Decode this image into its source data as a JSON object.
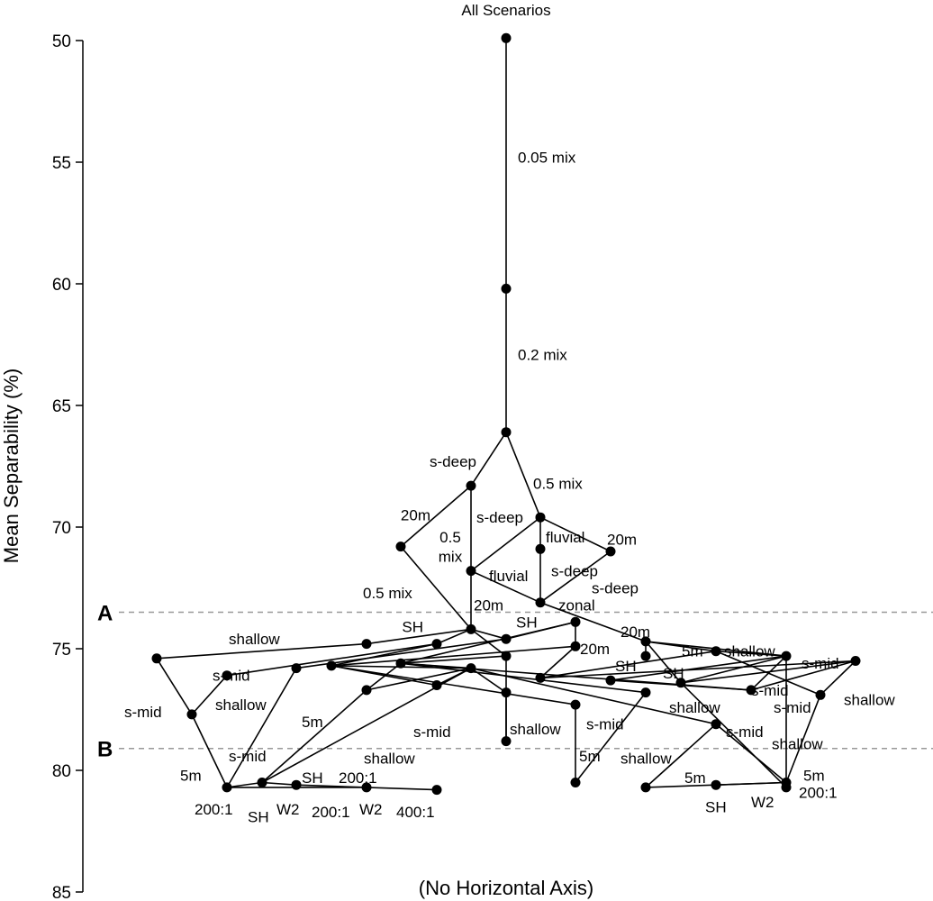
{
  "chart_data": {
    "type": "scatter",
    "title": "All Scenarios",
    "xlabel": "(No Horizontal Axis)",
    "ylabel": "Mean Separability (%)",
    "ylim": [
      50,
      85
    ],
    "y_inverted": true,
    "y_ticks": [
      "50",
      "55",
      "60",
      "65",
      "70",
      "75",
      "80",
      "85"
    ],
    "reference_lines": [
      {
        "label": "A",
        "y": 73.5,
        "style": "dashed",
        "color": "#999999"
      },
      {
        "label": "B",
        "y": 79.1,
        "style": "dashed",
        "color": "#999999"
      }
    ],
    "nodes": [
      {
        "id": "n0",
        "x": 562,
        "y": 49.9
      },
      {
        "id": "n1",
        "x": 562,
        "y": 60.2
      },
      {
        "id": "n2",
        "x": 562,
        "y": 66.1
      },
      {
        "id": "n3",
        "x": 523,
        "y": 68.3
      },
      {
        "id": "n4",
        "x": 600,
        "y": 69.6
      },
      {
        "id": "n5",
        "x": 445,
        "y": 70.8
      },
      {
        "id": "n6",
        "x": 600,
        "y": 70.9
      },
      {
        "id": "n7",
        "x": 678,
        "y": 71.0
      },
      {
        "id": "n8",
        "x": 523,
        "y": 71.8
      },
      {
        "id": "n9",
        "x": 600,
        "y": 73.1
      },
      {
        "id": "n10",
        "x": 523,
        "y": 74.2
      },
      {
        "id": "n11",
        "x": 639,
        "y": 73.9
      },
      {
        "id": "n12",
        "x": 562,
        "y": 74.6
      },
      {
        "id": "n13",
        "x": 407,
        "y": 74.8
      },
      {
        "id": "n14",
        "x": 485,
        "y": 74.8
      },
      {
        "id": "n15",
        "x": 717,
        "y": 74.7
      },
      {
        "id": "n16",
        "x": 639,
        "y": 74.9
      },
      {
        "id": "n17",
        "x": 795,
        "y": 75.1
      },
      {
        "id": "n18",
        "x": 873,
        "y": 75.3
      },
      {
        "id": "n19",
        "x": 174,
        "y": 75.4
      },
      {
        "id": "n20",
        "x": 562,
        "y": 75.3
      },
      {
        "id": "n21",
        "x": 717,
        "y": 75.3
      },
      {
        "id": "n22",
        "x": 950,
        "y": 75.5
      },
      {
        "id": "n23",
        "x": 368,
        "y": 75.7
      },
      {
        "id": "n24",
        "x": 445,
        "y": 75.6
      },
      {
        "id": "n25",
        "x": 329,
        "y": 75.8
      },
      {
        "id": "n26",
        "x": 523,
        "y": 75.8
      },
      {
        "id": "n27",
        "x": 252,
        "y": 76.1
      },
      {
        "id": "n28",
        "x": 600,
        "y": 76.2
      },
      {
        "id": "n29",
        "x": 678,
        "y": 76.3
      },
      {
        "id": "n30",
        "x": 756,
        "y": 76.4
      },
      {
        "id": "n31",
        "x": 485,
        "y": 76.5
      },
      {
        "id": "n32",
        "x": 407,
        "y": 76.7
      },
      {
        "id": "n33",
        "x": 834,
        "y": 76.7
      },
      {
        "id": "n34",
        "x": 562,
        "y": 76.8
      },
      {
        "id": "n35",
        "x": 717,
        "y": 76.8
      },
      {
        "id": "n36",
        "x": 911,
        "y": 76.9
      },
      {
        "id": "n37",
        "x": 639,
        "y": 77.3
      },
      {
        "id": "n38",
        "x": 213,
        "y": 77.7
      },
      {
        "id": "n39",
        "x": 795,
        "y": 78.1
      },
      {
        "id": "n40",
        "x": 562,
        "y": 78.8
      },
      {
        "id": "n41",
        "x": 639,
        "y": 80.5
      },
      {
        "id": "n42",
        "x": 291,
        "y": 80.5
      },
      {
        "id": "n43",
        "x": 252,
        "y": 80.7
      },
      {
        "id": "n44",
        "x": 329,
        "y": 80.6
      },
      {
        "id": "n45",
        "x": 407,
        "y": 80.7
      },
      {
        "id": "n46",
        "x": 485,
        "y": 80.8
      },
      {
        "id": "n47",
        "x": 717,
        "y": 80.7
      },
      {
        "id": "n48",
        "x": 795,
        "y": 80.6
      },
      {
        "id": "n49",
        "x": 873,
        "y": 80.5
      },
      {
        "id": "n50",
        "x": 873,
        "y": 80.7
      }
    ],
    "edges": [
      [
        "n0",
        "n1"
      ],
      [
        "n1",
        "n2"
      ],
      [
        "n2",
        "n3"
      ],
      [
        "n2",
        "n4"
      ],
      [
        "n3",
        "n5"
      ],
      [
        "n3",
        "n8"
      ],
      [
        "n4",
        "n8"
      ],
      [
        "n4",
        "n6"
      ],
      [
        "n4",
        "n7"
      ],
      [
        "n6",
        "n9"
      ],
      [
        "n7",
        "n9"
      ],
      [
        "n5",
        "n10"
      ],
      [
        "n8",
        "n10"
      ],
      [
        "n8",
        "n9"
      ],
      [
        "n9",
        "n15"
      ],
      [
        "n10",
        "n12"
      ],
      [
        "n10",
        "n20"
      ],
      [
        "n10",
        "n13"
      ],
      [
        "n10",
        "n14"
      ],
      [
        "n11",
        "n16"
      ],
      [
        "n12",
        "n11"
      ],
      [
        "n13",
        "n19"
      ],
      [
        "n19",
        "n38"
      ],
      [
        "n38",
        "n43"
      ],
      [
        "n38",
        "n27"
      ],
      [
        "n27",
        "n14"
      ],
      [
        "n14",
        "n23"
      ],
      [
        "n24",
        "n11"
      ],
      [
        "n25",
        "n43"
      ],
      [
        "n25",
        "n12"
      ],
      [
        "n23",
        "n16"
      ],
      [
        "n23",
        "n26"
      ],
      [
        "n23",
        "n31"
      ],
      [
        "n23",
        "n37"
      ],
      [
        "n24",
        "n20"
      ],
      [
        "n24",
        "n26"
      ],
      [
        "n24",
        "n33"
      ],
      [
        "n24",
        "n35"
      ],
      [
        "n32",
        "n26"
      ],
      [
        "n32",
        "n24"
      ],
      [
        "n42",
        "n26"
      ],
      [
        "n42",
        "n32"
      ],
      [
        "n42",
        "n44"
      ],
      [
        "n43",
        "n42"
      ],
      [
        "n43",
        "n45"
      ],
      [
        "n44",
        "n45"
      ],
      [
        "n45",
        "n46"
      ],
      [
        "n26",
        "n34"
      ],
      [
        "n26",
        "n39"
      ],
      [
        "n31",
        "n26"
      ],
      [
        "n34",
        "n40"
      ],
      [
        "n20",
        "n40"
      ],
      [
        "n37",
        "n41"
      ],
      [
        "n41",
        "n35"
      ],
      [
        "n15",
        "n17"
      ],
      [
        "n15",
        "n18"
      ],
      [
        "n21",
        "n15"
      ],
      [
        "n15",
        "n30"
      ],
      [
        "n16",
        "n28"
      ],
      [
        "n28",
        "n22"
      ],
      [
        "n28",
        "n17"
      ],
      [
        "n29",
        "n33"
      ],
      [
        "n29",
        "n18"
      ],
      [
        "n30",
        "n22"
      ],
      [
        "n30",
        "n18"
      ],
      [
        "n30",
        "n50"
      ],
      [
        "n33",
        "n22"
      ],
      [
        "n33",
        "n18"
      ],
      [
        "n17",
        "n18"
      ],
      [
        "n17",
        "n36"
      ],
      [
        "n36",
        "n22"
      ],
      [
        "n36",
        "n49"
      ],
      [
        "n18",
        "n50"
      ],
      [
        "n39",
        "n47"
      ],
      [
        "n39",
        "n49"
      ],
      [
        "n47",
        "n49"
      ],
      [
        "n48",
        "n49"
      ]
    ],
    "annotations": [
      {
        "text": "0.05 mix",
        "x": 575,
        "y": 54.8,
        "anchor": "start"
      },
      {
        "text": "0.2 mix",
        "x": 575,
        "y": 62.9,
        "anchor": "start"
      },
      {
        "text": "s-deep",
        "x": 529,
        "y": 67.3,
        "anchor": "end"
      },
      {
        "text": "0.5 mix",
        "x": 592,
        "y": 68.2,
        "anchor": "start"
      },
      {
        "text": "20m",
        "x": 478,
        "y": 69.5,
        "anchor": "end"
      },
      {
        "text": "s-deep",
        "x": 529,
        "y": 69.6,
        "anchor": "start"
      },
      {
        "text": "0.5",
        "x": 500,
        "y": 70.4,
        "anchor": "middle"
      },
      {
        "text": "fluvial",
        "x": 606,
        "y": 70.4,
        "anchor": "start"
      },
      {
        "text": "20m",
        "x": 674,
        "y": 70.5,
        "anchor": "start"
      },
      {
        "text": "mix",
        "x": 500,
        "y": 71.2,
        "anchor": "middle"
      },
      {
        "text": "s-deep",
        "x": 612,
        "y": 71.8,
        "anchor": "start"
      },
      {
        "text": "fluvial",
        "x": 543,
        "y": 72.0,
        "anchor": "start"
      },
      {
        "text": "s-deep",
        "x": 657,
        "y": 72.5,
        "anchor": "start"
      },
      {
        "text": "0.5 mix",
        "x": 403,
        "y": 72.7,
        "anchor": "start"
      },
      {
        "text": "20m",
        "x": 526,
        "y": 73.2,
        "anchor": "start"
      },
      {
        "text": "zonal",
        "x": 620,
        "y": 73.2,
        "anchor": "start"
      },
      {
        "text": "20m",
        "x": 689,
        "y": 74.3,
        "anchor": "start"
      },
      {
        "text": "SH",
        "x": 470,
        "y": 74.1,
        "anchor": "end"
      },
      {
        "text": "SH",
        "x": 573,
        "y": 73.9,
        "anchor": "start"
      },
      {
        "text": "shallow",
        "x": 254,
        "y": 74.6,
        "anchor": "start"
      },
      {
        "text": "20m",
        "x": 644,
        "y": 75.0,
        "anchor": "start"
      },
      {
        "text": "5m",
        "x": 757,
        "y": 75.1,
        "anchor": "start"
      },
      {
        "text": "shallow",
        "x": 804,
        "y": 75.1,
        "anchor": "start"
      },
      {
        "text": "SH",
        "x": 683,
        "y": 75.7,
        "anchor": "start"
      },
      {
        "text": "s-mid",
        "x": 890,
        "y": 75.6,
        "anchor": "start"
      },
      {
        "text": "SH",
        "x": 736,
        "y": 76.0,
        "anchor": "start"
      },
      {
        "text": "s-mid",
        "x": 236,
        "y": 76.1,
        "anchor": "start"
      },
      {
        "text": "s-mid",
        "x": 834,
        "y": 76.7,
        "anchor": "start"
      },
      {
        "text": "shallow",
        "x": 239,
        "y": 77.3,
        "anchor": "start"
      },
      {
        "text": "s-mid",
        "x": 859,
        "y": 77.4,
        "anchor": "start"
      },
      {
        "text": "shallow",
        "x": 937,
        "y": 77.1,
        "anchor": "start"
      },
      {
        "text": "s-mid",
        "x": 138,
        "y": 77.6,
        "anchor": "start"
      },
      {
        "text": "shallow",
        "x": 743,
        "y": 77.4,
        "anchor": "start"
      },
      {
        "text": "5m",
        "x": 335,
        "y": 78.0,
        "anchor": "start"
      },
      {
        "text": "s-mid",
        "x": 651,
        "y": 78.1,
        "anchor": "start"
      },
      {
        "text": "shallow",
        "x": 566,
        "y": 78.3,
        "anchor": "start"
      },
      {
        "text": "s-mid",
        "x": 459,
        "y": 78.4,
        "anchor": "start"
      },
      {
        "text": "s-mid",
        "x": 806,
        "y": 78.4,
        "anchor": "start"
      },
      {
        "text": "shallow",
        "x": 857,
        "y": 78.9,
        "anchor": "start"
      },
      {
        "text": "s-mid",
        "x": 254,
        "y": 79.4,
        "anchor": "start"
      },
      {
        "text": "5m",
        "x": 643,
        "y": 79.4,
        "anchor": "start"
      },
      {
        "text": "shallow",
        "x": 404,
        "y": 79.5,
        "anchor": "start"
      },
      {
        "text": "shallow",
        "x": 689,
        "y": 79.5,
        "anchor": "start"
      },
      {
        "text": "5m",
        "x": 200,
        "y": 80.2,
        "anchor": "start"
      },
      {
        "text": "5m",
        "x": 760,
        "y": 80.3,
        "anchor": "start"
      },
      {
        "text": "5m",
        "x": 892,
        "y": 80.2,
        "anchor": "start"
      },
      {
        "text": "SH",
        "x": 335,
        "y": 80.3,
        "anchor": "start"
      },
      {
        "text": "200:1",
        "x": 376,
        "y": 80.3,
        "anchor": "start"
      },
      {
        "text": "200:1",
        "x": 216,
        "y": 81.6,
        "anchor": "start"
      },
      {
        "text": "SH",
        "x": 275,
        "y": 81.9,
        "anchor": "start"
      },
      {
        "text": "W2",
        "x": 307,
        "y": 81.6,
        "anchor": "start"
      },
      {
        "text": "200:1",
        "x": 346,
        "y": 81.7,
        "anchor": "start"
      },
      {
        "text": "W2",
        "x": 399,
        "y": 81.6,
        "anchor": "start"
      },
      {
        "text": "400:1",
        "x": 440,
        "y": 81.7,
        "anchor": "start"
      },
      {
        "text": "SH",
        "x": 783,
        "y": 81.5,
        "anchor": "start"
      },
      {
        "text": "W2",
        "x": 834,
        "y": 81.3,
        "anchor": "start"
      },
      {
        "text": "200:1",
        "x": 887,
        "y": 80.9,
        "anchor": "start"
      }
    ]
  }
}
